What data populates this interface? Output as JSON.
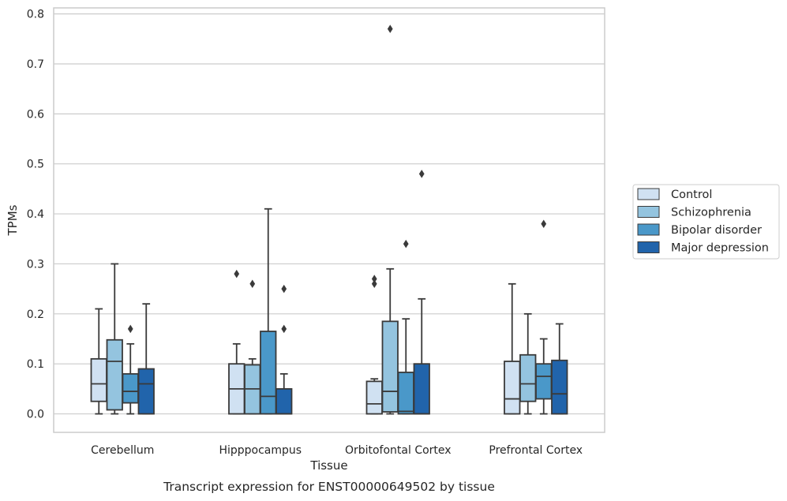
{
  "chart_data": {
    "type": "box",
    "xlabel": "Tissue",
    "ylabel": "TPMs",
    "caption": "Transcript expression for ENST00000649502 by tissue",
    "ylim": [
      -0.037,
      0.812
    ],
    "yticks": [
      0.0,
      0.1,
      0.2,
      0.3,
      0.4,
      0.5,
      0.6,
      0.7,
      0.8
    ],
    "ytick_labels": [
      "0.0",
      "0.1",
      "0.2",
      "0.3",
      "0.4",
      "0.5",
      "0.6",
      "0.7",
      "0.8"
    ],
    "grid": "horizontal",
    "legend_position": "right",
    "categories": [
      "Cerebellum",
      "Hipppocampus",
      "Orbitofontal Cortex",
      "Prefrontal Cortex"
    ],
    "series": [
      {
        "name": "Control",
        "color": "#d0e1f2",
        "boxes": [
          {
            "whislo": 0.0,
            "q1": 0.025,
            "med": 0.06,
            "q3": 0.11,
            "whishi": 0.21,
            "fliers": []
          },
          {
            "whislo": 0.0,
            "q1": 0.0,
            "med": 0.05,
            "q3": 0.1,
            "whishi": 0.14,
            "fliers": [
              0.28
            ]
          },
          {
            "whislo": 0.0,
            "q1": 0.0,
            "med": 0.02,
            "q3": 0.065,
            "whishi": 0.07,
            "fliers": [
              0.26,
              0.27
            ]
          },
          {
            "whislo": 0.0,
            "q1": 0.0,
            "med": 0.03,
            "q3": 0.105,
            "whishi": 0.26,
            "fliers": []
          }
        ]
      },
      {
        "name": "Schizophrenia",
        "color": "#94c4df",
        "boxes": [
          {
            "whislo": 0.0,
            "q1": 0.008,
            "med": 0.105,
            "q3": 0.148,
            "whishi": 0.3,
            "fliers": []
          },
          {
            "whislo": 0.0,
            "q1": 0.0,
            "med": 0.05,
            "q3": 0.098,
            "whishi": 0.11,
            "fliers": [
              0.26
            ]
          },
          {
            "whislo": 0.0,
            "q1": 0.004,
            "med": 0.045,
            "q3": 0.185,
            "whishi": 0.29,
            "fliers": [
              0.77
            ]
          },
          {
            "whislo": 0.0,
            "q1": 0.025,
            "med": 0.06,
            "q3": 0.118,
            "whishi": 0.2,
            "fliers": []
          }
        ]
      },
      {
        "name": "Bipolar disorder",
        "color": "#4a98c9",
        "boxes": [
          {
            "whislo": 0.0,
            "q1": 0.022,
            "med": 0.045,
            "q3": 0.08,
            "whishi": 0.14,
            "fliers": [
              0.17
            ]
          },
          {
            "whislo": 0.0,
            "q1": 0.0,
            "med": 0.035,
            "q3": 0.165,
            "whishi": 0.41,
            "fliers": []
          },
          {
            "whislo": 0.0,
            "q1": 0.0,
            "med": 0.005,
            "q3": 0.083,
            "whishi": 0.19,
            "fliers": [
              0.34
            ]
          },
          {
            "whislo": 0.0,
            "q1": 0.03,
            "med": 0.075,
            "q3": 0.1,
            "whishi": 0.15,
            "fliers": [
              0.38
            ]
          }
        ]
      },
      {
        "name": "Major depression",
        "color": "#2164ab",
        "boxes": [
          {
            "whislo": 0.0,
            "q1": 0.0,
            "med": 0.06,
            "q3": 0.09,
            "whishi": 0.22,
            "fliers": []
          },
          {
            "whislo": 0.0,
            "q1": 0.0,
            "med": 0.0,
            "q3": 0.05,
            "whishi": 0.08,
            "fliers": [
              0.17,
              0.25
            ]
          },
          {
            "whislo": 0.0,
            "q1": 0.0,
            "med": 0.0,
            "q3": 0.1,
            "whishi": 0.23,
            "fliers": [
              0.48
            ]
          },
          {
            "whislo": 0.0,
            "q1": 0.0,
            "med": 0.04,
            "q3": 0.107,
            "whishi": 0.18,
            "fliers": []
          }
        ]
      }
    ]
  }
}
